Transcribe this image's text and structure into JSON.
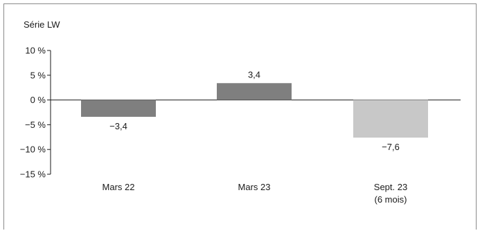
{
  "chart_data": {
    "type": "bar",
    "title": "",
    "ylabel": "Série LW",
    "xlabel": "",
    "ylim": [
      -15,
      10
    ],
    "yticks": [
      10,
      5,
      0,
      -5,
      -10,
      -15
    ],
    "ytick_labels": [
      "10 %",
      "5 %",
      "0 %",
      "−5 %",
      "−10 %",
      "−15 %"
    ],
    "categories": [
      "Mars 22",
      "Mars 23",
      "Sept. 23"
    ],
    "category_sublabels": [
      "",
      "",
      "(6 mois)"
    ],
    "values": [
      -3.4,
      3.4,
      -7.6
    ],
    "value_labels": [
      "−3,4",
      "3,4",
      "−7,6"
    ],
    "colors": [
      "#7f7f7f",
      "#7f7f7f",
      "#c8c8c8"
    ],
    "grid": false,
    "legend": "none"
  }
}
